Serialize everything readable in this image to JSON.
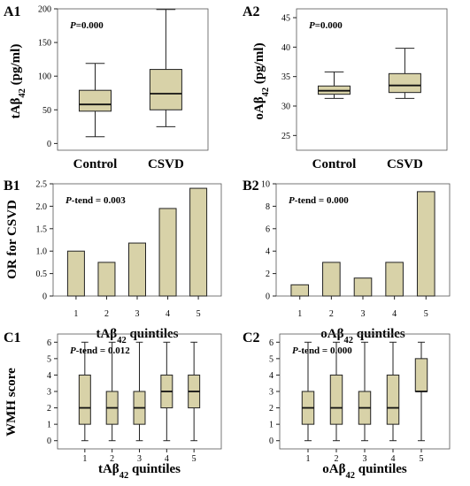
{
  "chart_data": [
    {
      "id": "A1",
      "panel_label": "A1",
      "type": "boxplot",
      "ylabel": "tAβ42 (pg/ml)",
      "ylim": [
        -10,
        200
      ],
      "yticks": [
        "0",
        "50",
        "100",
        "150",
        "200"
      ],
      "categories": [
        "Control",
        "CSVD"
      ],
      "annotation": {
        "italic": "P",
        "rest": "=0.000"
      },
      "boxes": [
        {
          "min": 10,
          "q1": 48,
          "median": 58,
          "q3": 79,
          "max": 119
        },
        {
          "min": 25,
          "q1": 50,
          "median": 74,
          "q3": 110,
          "max": 199
        }
      ]
    },
    {
      "id": "A2",
      "panel_label": "A2",
      "type": "boxplot",
      "ylabel": "oAβ42 (pg/ml)",
      "ylim": [
        22.5,
        46.5
      ],
      "yticks": [
        "25",
        "30",
        "35",
        "40",
        "45"
      ],
      "categories": [
        "Control",
        "CSVD"
      ],
      "annotation": {
        "italic": "P",
        "rest": "=0.000"
      },
      "boxes": [
        {
          "min": 31.3,
          "q1": 32,
          "median": 32.6,
          "q3": 33.4,
          "max": 35.8
        },
        {
          "min": 31.3,
          "q1": 32.3,
          "median": 33.5,
          "q3": 35.5,
          "max": 39.8
        }
      ]
    },
    {
      "id": "B1",
      "panel_label": "B1",
      "type": "bar",
      "ylabel": "OR for CSVD",
      "xlabel": "tAβ42 quintiles",
      "ylim": [
        0,
        2.5
      ],
      "yticks": [
        "0",
        "0.5",
        "1.0",
        "1.5",
        "2.0",
        "2.5"
      ],
      "categories": [
        "1",
        "2",
        "3",
        "4",
        "5"
      ],
      "values": [
        1.0,
        0.75,
        1.18,
        1.95,
        2.4
      ],
      "annotation": {
        "italic": "P",
        "rest": "-tend =  0.003"
      }
    },
    {
      "id": "B2",
      "panel_label": "B2",
      "type": "bar",
      "xlabel": "oAβ42 quintiles",
      "ylim": [
        0,
        10
      ],
      "yticks": [
        "0",
        "2",
        "4",
        "6",
        "8",
        "10"
      ],
      "categories": [
        "1",
        "2",
        "3",
        "4",
        "5"
      ],
      "values": [
        1.0,
        3.0,
        1.6,
        3.0,
        9.3
      ],
      "annotation": {
        "italic": "P",
        "rest": "-tend =  0.000"
      }
    },
    {
      "id": "C1",
      "panel_label": "C1",
      "type": "boxplot",
      "ylabel": "WMH score",
      "xlabel": "tAβ42  quintiles",
      "ylim": [
        -0.5,
        6.5
      ],
      "yticks": [
        "0",
        "1",
        "2",
        "3",
        "4",
        "5",
        "6"
      ],
      "categories": [
        "1",
        "2",
        "3",
        "4",
        "5"
      ],
      "annotation": {
        "italic": "P",
        "rest": "-tend =  0.012"
      },
      "boxes": [
        {
          "min": 0,
          "q1": 1,
          "median": 2,
          "q3": 4,
          "max": 6
        },
        {
          "min": 0,
          "q1": 1,
          "median": 2,
          "q3": 3,
          "max": 6
        },
        {
          "min": 0,
          "q1": 1,
          "median": 2,
          "q3": 3,
          "max": 6
        },
        {
          "min": 0,
          "q1": 2,
          "median": 3,
          "q3": 4,
          "max": 6
        },
        {
          "min": 0,
          "q1": 2,
          "median": 3,
          "q3": 4,
          "max": 6
        }
      ]
    },
    {
      "id": "C2",
      "panel_label": "C2",
      "type": "boxplot",
      "xlabel": "oAβ42 quintiles",
      "ylim": [
        -0.5,
        6.5
      ],
      "yticks": [
        "0",
        "1",
        "2",
        "3",
        "4",
        "5",
        "6"
      ],
      "categories": [
        "1",
        "2",
        "3",
        "4",
        "5"
      ],
      "annotation": {
        "italic": "P",
        "rest": "-tend =  0.000"
      },
      "boxes": [
        {
          "min": 0,
          "q1": 1,
          "median": 2,
          "q3": 3,
          "max": 6
        },
        {
          "min": 0,
          "q1": 1,
          "median": 2,
          "q3": 4,
          "max": 6
        },
        {
          "min": 0,
          "q1": 1,
          "median": 2,
          "q3": 3,
          "max": 6
        },
        {
          "min": 0,
          "q1": 1,
          "median": 2,
          "q3": 4,
          "max": 6
        },
        {
          "min": 0,
          "q1": 3,
          "median": 3,
          "q3": 5,
          "max": 6
        }
      ]
    }
  ]
}
